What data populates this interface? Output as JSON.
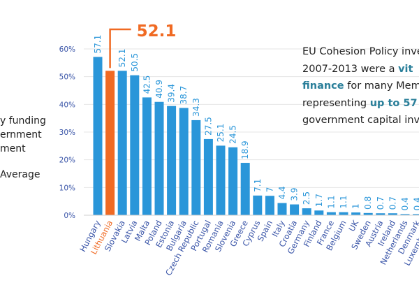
{
  "left_text": {
    "lines": [
      "y funding",
      "ernment",
      "ment"
    ],
    "average": "Average"
  },
  "right_text": {
    "line1": "EU Cohesion Policy inve",
    "line2_pre": "2007-2013 were a ",
    "line2_hl": "vit",
    "line3_hl": "finance",
    "line3_post": " for many Mem",
    "line4_pre": "representing ",
    "line4_hl": "up to 57",
    "line5": "government capital inv"
  },
  "highlight_label": "52.1",
  "colors": {
    "bar": "#2a96d9",
    "highlight": "#f06a23",
    "axis_text": "#3a55a8",
    "grid": "#e6e6e6"
  },
  "chart_data": {
    "type": "bar",
    "categories": [
      "Hungary",
      "Lithuania",
      "Slovakia",
      "Latvia",
      "Malta",
      "Poland",
      "Estonia",
      "Bulgaria",
      "Czech Republic",
      "Portugal",
      "Romania",
      "Slovenia",
      "Greece",
      "Cyprus",
      "Spain",
      "Italy",
      "Croatia",
      "Germany",
      "Finland",
      "France",
      "Belgium",
      "UK",
      "Sweden",
      "Austria",
      "Ireland",
      "Netherlands",
      "Denmark",
      "Luxembourg"
    ],
    "values": [
      57.1,
      52.1,
      52.1,
      50.5,
      42.5,
      40.9,
      39.4,
      38.7,
      34.3,
      27.5,
      25.1,
      24.5,
      18.9,
      7.1,
      7,
      4.4,
      3.9,
      2.5,
      1.7,
      1.1,
      1.1,
      1,
      0.8,
      0.7,
      0.7,
      0.4,
      0.4,
      0.2
    ],
    "highlighted": "Lithuania",
    "yticks": [
      "0%",
      "10%",
      "20%",
      "30%",
      "40%",
      "50%",
      "60%"
    ],
    "ylim": [
      0,
      60
    ],
    "grid": true
  }
}
